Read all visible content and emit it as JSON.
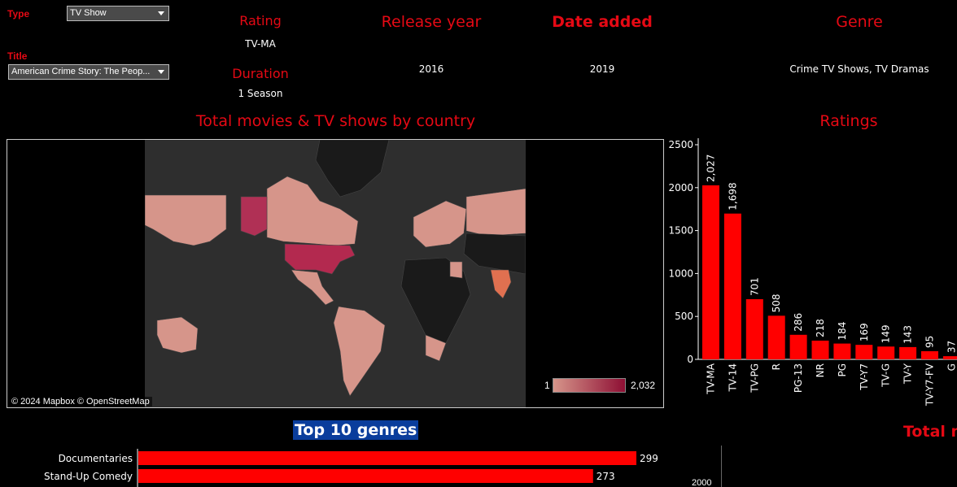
{
  "filters": {
    "type_label": "Type",
    "type_value": "TV Show",
    "title_label": "Title",
    "title_value": "American Crime Story: The Peop..."
  },
  "kpis": {
    "rating_title": "Rating",
    "rating_value": "TV-MA",
    "duration_title": "Duration",
    "duration_value": "1 Season",
    "release_title": "Release year",
    "release_value": "2016",
    "date_title": "Date added",
    "date_value": "2019",
    "genre_title": "Genre",
    "genre_value": "Crime TV Shows, TV Dramas"
  },
  "map": {
    "title": "Total movies & TV shows by country",
    "attribution": "© 2024 Mapbox  © OpenStreetMap",
    "legend_min": "1",
    "legend_max": "2,032",
    "colors": {
      "low": "#d6958a",
      "high": "#8e0f34",
      "land_empty": "#1a1a1a",
      "ocean": "#2e2e2e"
    }
  },
  "ratings_section": {
    "title": "Ratings"
  },
  "top10_section": {
    "title": "Top 10 genres"
  },
  "total_section": {
    "title": "Total m"
  },
  "chart_data": [
    {
      "type": "bar",
      "title": "Ratings",
      "categories": [
        "TV-MA",
        "TV-14",
        "TV-PG",
        "R",
        "PG-13",
        "NR",
        "PG",
        "TV-Y7",
        "TV-G",
        "TV-Y",
        "TV-Y7-FV",
        "G"
      ],
      "values": [
        2027,
        1698,
        701,
        508,
        286,
        218,
        184,
        169,
        149,
        143,
        95,
        37
      ],
      "value_labels": [
        "2,027",
        "1,698",
        "701",
        "508",
        "286",
        "218",
        "184",
        "169",
        "149",
        "143",
        "95",
        "37"
      ],
      "yticks": [
        "0",
        "500",
        "1000",
        "1500",
        "2000",
        "2500"
      ],
      "ylim": [
        0,
        2500
      ],
      "color": "#ff0000"
    },
    {
      "type": "bar",
      "orientation": "horizontal",
      "title": "Top 10 genres",
      "categories": [
        "Documentaries",
        "Stand-Up Comedy"
      ],
      "values": [
        299,
        273
      ],
      "value_labels": [
        "299",
        "273"
      ],
      "color": "#ff0000"
    },
    {
      "type": "line",
      "title": "Total m",
      "yticks": [
        "2000"
      ]
    }
  ]
}
